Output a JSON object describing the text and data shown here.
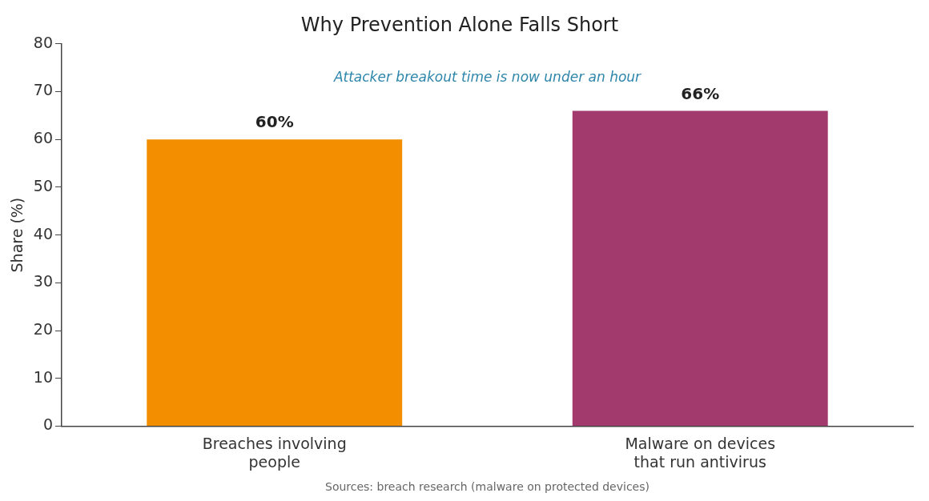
{
  "chart_data": {
    "type": "bar",
    "title": "Why Prevention Alone Falls Short",
    "ylabel": "Share (%)",
    "categories": [
      "Breaches involving\npeople",
      "Malware on devices\nthat run antivirus"
    ],
    "values": [
      60,
      66
    ],
    "colors": [
      "#f28e00",
      "#a23a6e"
    ],
    "value_labels": [
      "60%",
      "66%"
    ],
    "ylim": [
      0,
      80
    ],
    "yticks": [
      0,
      10,
      20,
      30,
      40,
      50,
      60,
      70,
      80
    ],
    "grid": false,
    "legend": false,
    "annotations": [
      "Attacker breakout time is now under an hour",
      "Sources: breach research (malware on protected devices)"
    ]
  }
}
